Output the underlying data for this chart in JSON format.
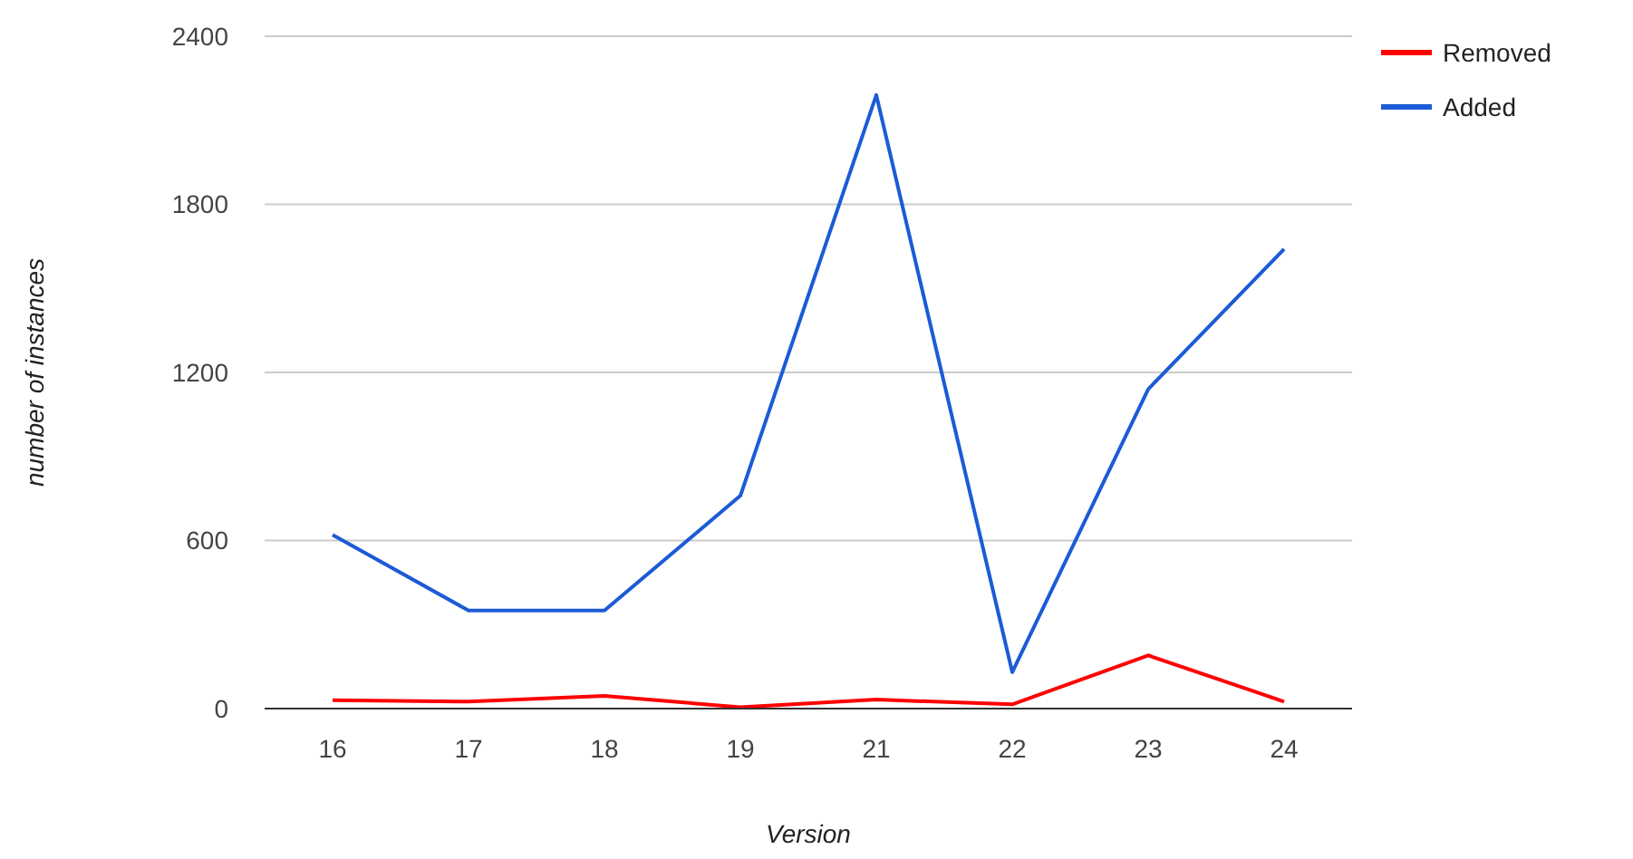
{
  "chart_data": {
    "type": "line",
    "xlabel": "Version",
    "ylabel": "number of instances",
    "categories": [
      "16",
      "17",
      "18",
      "19",
      "21",
      "22",
      "23",
      "24"
    ],
    "series": [
      {
        "name": "Removed",
        "color": "#ff0000",
        "values": [
          30,
          25,
          45,
          5,
          32,
          15,
          190,
          25
        ]
      },
      {
        "name": "Added",
        "color": "#1c5bd6",
        "values": [
          620,
          350,
          350,
          760,
          2190,
          130,
          1140,
          1640
        ]
      }
    ],
    "ylim": [
      0,
      2400
    ],
    "yticks": [
      0,
      600,
      1200,
      1800,
      2400
    ],
    "grid": "y",
    "legend": "right",
    "line_style": "solid",
    "marker": "none"
  }
}
